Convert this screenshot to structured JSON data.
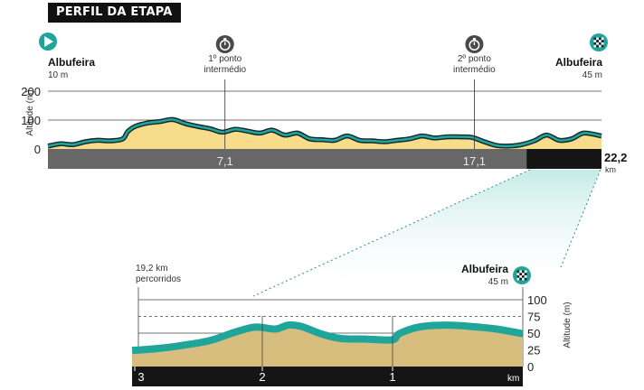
{
  "title": "PERFIL DA ETAPA",
  "start": {
    "name": "Albufeira",
    "altitude": "10 m",
    "icon": "play-flag-icon"
  },
  "finish": {
    "name": "Albufeira",
    "altitude": "45 m",
    "icon": "checkered-flag-icon"
  },
  "intermediates": [
    {
      "label_line1": "1º ponto",
      "label_line2": "intermédio",
      "km": 7.1,
      "km_label": "7,1",
      "icon": "stopwatch-icon"
    },
    {
      "label_line1": "2º ponto",
      "label_line2": "intermédio",
      "km": 17.1,
      "km_label": "17,1",
      "icon": "stopwatch-icon"
    }
  ],
  "total_km": {
    "value": "22,2",
    "unit": "km"
  },
  "zoom": {
    "start_line1": "19,2 km",
    "start_line2": "percorridos",
    "finish_name": "Albufeira",
    "finish_altitude": "45 m",
    "x_unit": "km"
  },
  "colors": {
    "terrain": "#f7dc8c",
    "terrain_zoom": "#d7bd7e",
    "ridge": "#1fa59a",
    "ridge_dark": "#16262a",
    "bar": "#676767",
    "bar_dark": "#151515",
    "flag_start": "#1fa59a"
  },
  "chart_data": [
    {
      "type": "area",
      "ylabel": "Altitude (m)",
      "xlabel": "km",
      "xlim": [
        0,
        22.2
      ],
      "ylim": [
        0,
        200
      ],
      "yticks": [
        0,
        100,
        200
      ],
      "xticks": [
        {
          "value": 7.1,
          "label": "7,1"
        },
        {
          "value": 17.1,
          "label": "17,1"
        },
        {
          "value": 22.2,
          "label": "22,2"
        }
      ],
      "x": [
        0,
        0.5,
        1,
        1.5,
        2,
        2.5,
        3,
        3.2,
        3.5,
        4,
        4.5,
        5,
        5.5,
        6,
        6.5,
        7,
        7.5,
        8,
        8.5,
        9,
        9.5,
        10,
        10.5,
        11,
        11.5,
        12,
        12.5,
        13,
        13.5,
        14,
        14.5,
        15,
        15.5,
        16,
        16.5,
        17,
        17.5,
        18,
        18.5,
        19,
        19.5,
        20,
        20.5,
        21,
        21.5,
        22.2
      ],
      "y": [
        10,
        18,
        15,
        25,
        30,
        28,
        35,
        60,
        78,
        90,
        95,
        102,
        88,
        78,
        70,
        58,
        68,
        62,
        55,
        65,
        48,
        55,
        35,
        32,
        30,
        45,
        30,
        28,
        25,
        30,
        35,
        45,
        38,
        42,
        42,
        40,
        25,
        12,
        10,
        15,
        28,
        48,
        30,
        35,
        55,
        45
      ]
    },
    {
      "type": "area",
      "ylabel": "Altitude (m)",
      "xlabel": "km",
      "xlim": [
        3,
        0
      ],
      "ylim": [
        0,
        100
      ],
      "yticks": [
        0,
        25,
        50,
        75,
        100
      ],
      "xticks": [
        {
          "value": 3,
          "label": "3"
        },
        {
          "value": 2,
          "label": "2"
        },
        {
          "value": 1,
          "label": "1"
        }
      ],
      "x": [
        3,
        2.8,
        2.6,
        2.4,
        2.2,
        2.05,
        1.9,
        1.8,
        1.7,
        1.55,
        1.4,
        1.2,
        1.0,
        0.95,
        0.8,
        0.6,
        0.4,
        0.2,
        0.0
      ],
      "y": [
        20,
        23,
        28,
        35,
        48,
        55,
        52,
        58,
        56,
        45,
        38,
        37,
        36,
        45,
        55,
        58,
        56,
        52,
        45
      ]
    }
  ]
}
